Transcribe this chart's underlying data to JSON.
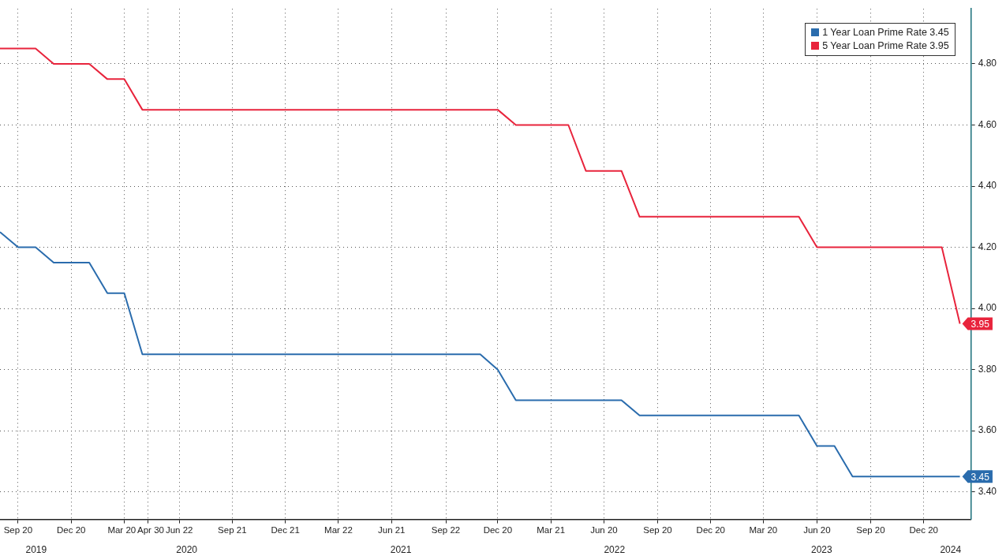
{
  "chart_data": {
    "type": "line",
    "x": [
      "2019-08-20",
      "2019-09-20",
      "2019-10-20",
      "2019-11-20",
      "2019-12-20",
      "2020-01-20",
      "2020-02-20",
      "2020-03-20",
      "2020-04-20",
      "2020-05-20",
      "2020-06-20",
      "2020-07-20",
      "2020-08-20",
      "2020-09-20",
      "2020-10-20",
      "2020-11-20",
      "2020-12-20",
      "2021-01-20",
      "2021-02-20",
      "2021-03-20",
      "2021-04-20",
      "2021-05-20",
      "2021-06-20",
      "2021-07-20",
      "2021-08-20",
      "2021-09-20",
      "2021-10-20",
      "2021-11-20",
      "2021-12-20",
      "2022-01-20",
      "2022-02-20",
      "2022-03-20",
      "2022-04-20",
      "2022-05-20",
      "2022-06-20",
      "2022-07-20",
      "2022-08-20",
      "2022-09-20",
      "2022-10-20",
      "2022-11-20",
      "2022-12-20",
      "2023-01-20",
      "2023-02-20",
      "2023-03-20",
      "2023-04-20",
      "2023-05-20",
      "2023-06-20",
      "2023-07-20",
      "2023-08-20",
      "2023-09-20",
      "2023-10-20",
      "2023-11-20",
      "2023-12-20",
      "2024-01-20",
      "2024-02-20"
    ],
    "series": [
      {
        "name": "1 Year Loan Prime Rate 3.45",
        "color": "#2a6cad",
        "values": [
          4.25,
          4.2,
          4.2,
          4.15,
          4.15,
          4.15,
          4.05,
          4.05,
          3.85,
          3.85,
          3.85,
          3.85,
          3.85,
          3.85,
          3.85,
          3.85,
          3.85,
          3.85,
          3.85,
          3.85,
          3.85,
          3.85,
          3.85,
          3.85,
          3.85,
          3.85,
          3.85,
          3.85,
          3.8,
          3.7,
          3.7,
          3.7,
          3.7,
          3.7,
          3.7,
          3.7,
          3.65,
          3.65,
          3.65,
          3.65,
          3.65,
          3.65,
          3.65,
          3.65,
          3.65,
          3.65,
          3.55,
          3.55,
          3.45,
          3.45,
          3.45,
          3.45,
          3.45,
          3.45,
          3.45
        ],
        "value_labels": [
          null,
          null,
          null,
          null,
          null,
          null,
          null,
          null,
          null,
          null,
          null,
          null,
          null,
          null,
          null,
          null,
          null,
          null,
          null,
          null,
          null,
          null,
          null,
          null,
          null,
          null,
          null,
          null,
          null,
          null,
          null,
          null,
          null,
          null,
          null,
          null,
          null,
          null,
          null,
          null,
          null,
          null,
          null,
          null,
          null,
          null,
          null,
          null,
          null,
          null,
          null,
          null,
          null,
          null,
          "3.45"
        ]
      },
      {
        "name": "5 Year Loan Prime Rate 3.95",
        "color": "#e8243c",
        "values": [
          4.85,
          4.85,
          4.85,
          4.8,
          4.8,
          4.8,
          4.75,
          4.75,
          4.65,
          4.65,
          4.65,
          4.65,
          4.65,
          4.65,
          4.65,
          4.65,
          4.65,
          4.65,
          4.65,
          4.65,
          4.65,
          4.65,
          4.65,
          4.65,
          4.65,
          4.65,
          4.65,
          4.65,
          4.65,
          4.6,
          4.6,
          4.6,
          4.6,
          4.45,
          4.45,
          4.45,
          4.3,
          4.3,
          4.3,
          4.3,
          4.3,
          4.3,
          4.3,
          4.3,
          4.3,
          4.3,
          4.2,
          4.2,
          4.2,
          4.2,
          4.2,
          4.2,
          4.2,
          4.2,
          3.95
        ],
        "value_labels": [
          null,
          null,
          null,
          null,
          null,
          null,
          null,
          null,
          null,
          null,
          null,
          null,
          null,
          null,
          null,
          null,
          null,
          null,
          null,
          null,
          null,
          null,
          null,
          null,
          null,
          null,
          null,
          null,
          null,
          null,
          null,
          null,
          null,
          null,
          null,
          null,
          null,
          null,
          null,
          null,
          null,
          null,
          null,
          null,
          null,
          null,
          null,
          null,
          null,
          null,
          null,
          null,
          null,
          null,
          "3.95"
        ]
      }
    ],
    "xlim": [
      "2019-08-20",
      "2024-03-10"
    ],
    "xticks": [
      {
        "value": "2019-09-20",
        "label": "Sep 20"
      },
      {
        "value": "2019-12-20",
        "label": "Dec 20"
      },
      {
        "value": "2020-03-20",
        "label": "Mar 20"
      },
      {
        "value": "2020-04-30",
        "label": "Apr 30"
      },
      {
        "value": "2020-06-22",
        "label": "Jun 22"
      },
      {
        "value": "2020-09-21",
        "label": "Sep 21"
      },
      {
        "value": "2020-12-21",
        "label": "Dec 21"
      },
      {
        "value": "2021-03-22",
        "label": "Mar 22"
      },
      {
        "value": "2021-06-21",
        "label": "Jun 21"
      },
      {
        "value": "2021-09-22",
        "label": "Sep 22"
      },
      {
        "value": "2021-12-20",
        "label": "Dec 20"
      },
      {
        "value": "2022-03-21",
        "label": "Mar 21"
      },
      {
        "value": "2022-06-20",
        "label": "Jun 20"
      },
      {
        "value": "2022-09-20",
        "label": "Sep 20"
      },
      {
        "value": "2022-12-20",
        "label": "Dec 20"
      },
      {
        "value": "2023-03-20",
        "label": "Mar 20"
      },
      {
        "value": "2023-06-20",
        "label": "Jun 20"
      },
      {
        "value": "2023-09-20",
        "label": "Sep 20"
      },
      {
        "value": "2023-12-20",
        "label": "Dec 20"
      }
    ],
    "x2lim": [
      "2019-08-20",
      "2024-03-10"
    ],
    "x2ticks": [
      {
        "value": "2019-10-21",
        "label": "2019"
      },
      {
        "value": "2020-07-05",
        "label": "2020"
      },
      {
        "value": "2021-07-07",
        "label": "2021"
      },
      {
        "value": "2022-07-08",
        "label": "2022"
      },
      {
        "value": "2023-06-28",
        "label": "2023"
      },
      {
        "value": "2024-02-04",
        "label": "2024"
      }
    ],
    "ylim": [
      3.31,
      4.98
    ],
    "yticks": [
      {
        "value": 3.4,
        "label": "3.40"
      },
      {
        "value": 3.6,
        "label": "3.60"
      },
      {
        "value": 3.8,
        "label": "3.80"
      },
      {
        "value": 4.0,
        "label": "4.00"
      },
      {
        "value": 4.2,
        "label": "4.20"
      },
      {
        "value": 4.4,
        "label": "4.40"
      },
      {
        "value": 4.6,
        "label": "4.60"
      },
      {
        "value": 4.8,
        "label": "4.80"
      }
    ],
    "grid": true,
    "legend": "top right",
    "line_style": "solid",
    "marker": "none"
  }
}
